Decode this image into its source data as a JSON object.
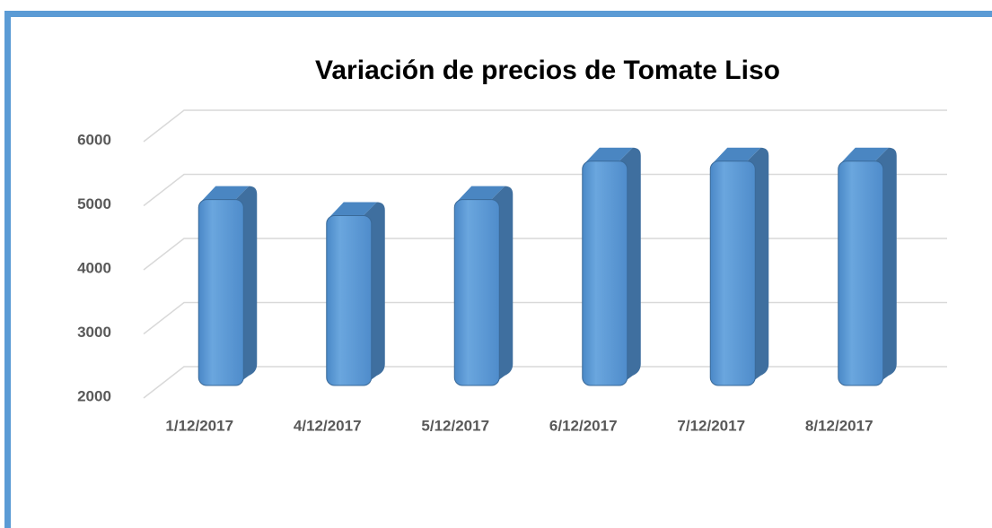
{
  "chart_data": {
    "type": "bar3d",
    "title": "Variación de precios de Tomate Liso",
    "categories": [
      "1/12/2017",
      "4/12/2017",
      "5/12/2017",
      "6/12/2017",
      "7/12/2017",
      "8/12/2017"
    ],
    "values": [
      4900,
      4650,
      4900,
      5500,
      5500,
      5500
    ],
    "color": "#5b9bd5",
    "ylim": [
      2000,
      6000
    ],
    "yticks": [
      2000,
      3000,
      4000,
      5000,
      6000
    ],
    "grid": true
  }
}
